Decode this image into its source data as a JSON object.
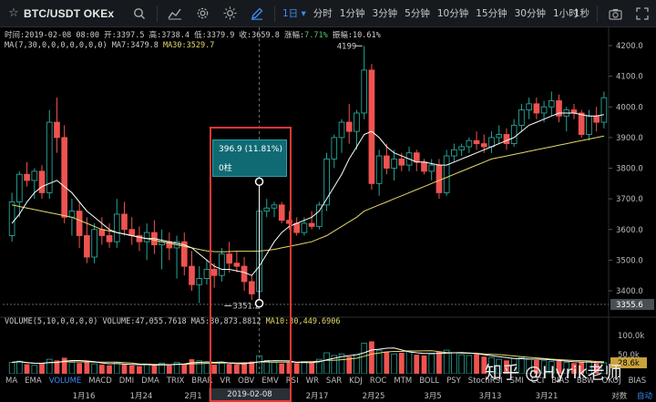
{
  "toolbar": {
    "symbol": "BTC/USDT OKEx",
    "intervals": [
      "1日 ▾",
      "分时",
      "1分钟",
      "3分钟",
      "5分钟",
      "10分钟",
      "15分钟",
      "30分钟",
      "1小时"
    ],
    "active_interval": "1日 ▾",
    "second_label": "1秒"
  },
  "info": {
    "time_label": "时间:",
    "time": "2019-02-08 08:00",
    "open_label": "开:",
    "open": "3397.5",
    "high_label": "高:",
    "high": "3738.4",
    "low_label": "低:",
    "low": "3379.9",
    "close_label": "收:",
    "close": "3659.8",
    "change_label": "涨幅:",
    "change": "7.71%",
    "amp_label": "振幅:",
    "amp": "10.61%",
    "ma_label": "MA(7,30,0,0,0,0,0,0,0)",
    "ma7_label": "MA7:",
    "ma7": "3479.8",
    "ma30_label": "MA30:",
    "ma30": "3529.7"
  },
  "volume_info": {
    "label": "VOLUME(5,10,0,0,0,0)",
    "volume_label": "VOLUME:",
    "volume": "47,055.7618",
    "ma5_label": "MA5:",
    "ma5": "30,873.8812",
    "ma10_label": "MA10:",
    "ma10": "30,449.6906"
  },
  "price_axis": [
    "4200.0",
    "4100.0",
    "4000.0",
    "3900.0",
    "3800.0",
    "3700.0",
    "3600.0",
    "3500.0",
    "3400.0"
  ],
  "price_current": "3355.6",
  "volume_axis": [
    "100.0k",
    "50.0k"
  ],
  "volume_current": "28.6k",
  "annotations": {
    "high_mark": "4199",
    "low_mark": "3351.2"
  },
  "tooltip": {
    "line1": "396.9 (11.81%)",
    "line2": "0柱"
  },
  "indicators": [
    "MA",
    "EMA",
    "VOLUME",
    "MACD",
    "DMI",
    "DMA",
    "TRIX",
    "BRAR",
    "VR",
    "OBV",
    "EMV",
    "RSI",
    "WR",
    "SAR",
    "KDJ",
    "ROC",
    "MTM",
    "BOLL",
    "PSY",
    "StochRSI",
    "SMI",
    "CCI",
    "BIAS",
    "BBW",
    "OKOJ",
    "BIAS"
  ],
  "selected_indicator": "VOLUME",
  "dates": [
    "1月16",
    "1月24",
    "2月1",
    "2月17",
    "2月25",
    "3月5",
    "3月13",
    "3月21"
  ],
  "date_highlight": "2019-02-08 08:00:00",
  "bottom_right": {
    "log": "对数",
    "auto": "自动"
  },
  "watermark": "知乎 @Hyrik老师",
  "colors": {
    "up": "#26a69a",
    "down": "#ef5350",
    "ma7": "#ffffff",
    "ma30": "#e5d96b",
    "accent": "#3d8cf5",
    "highlight_box": "#e53935"
  },
  "chart_data": {
    "type": "candlestick",
    "symbol": "BTC/USDT",
    "ylim": [
      3330,
      4260
    ],
    "volume_ylim": [
      0,
      110000
    ],
    "candles": [
      {
        "o": 3580,
        "h": 3720,
        "l": 3560,
        "c": 3690
      },
      {
        "o": 3690,
        "h": 3790,
        "l": 3640,
        "c": 3780
      },
      {
        "o": 3780,
        "h": 3820,
        "l": 3740,
        "c": 3760
      },
      {
        "o": 3760,
        "h": 3800,
        "l": 3700,
        "c": 3790
      },
      {
        "o": 3790,
        "h": 3810,
        "l": 3700,
        "c": 3720
      },
      {
        "o": 3720,
        "h": 3990,
        "l": 3700,
        "c": 3950
      },
      {
        "o": 3950,
        "h": 4030,
        "l": 3850,
        "c": 3900
      },
      {
        "o": 3900,
        "h": 3940,
        "l": 3620,
        "c": 3640
      },
      {
        "o": 3640,
        "h": 3700,
        "l": 3580,
        "c": 3660
      },
      {
        "o": 3660,
        "h": 3690,
        "l": 3540,
        "c": 3580
      },
      {
        "o": 3580,
        "h": 3640,
        "l": 3490,
        "c": 3510
      },
      {
        "o": 3510,
        "h": 3620,
        "l": 3490,
        "c": 3600
      },
      {
        "o": 3600,
        "h": 3640,
        "l": 3550,
        "c": 3580
      },
      {
        "o": 3580,
        "h": 3620,
        "l": 3540,
        "c": 3560
      },
      {
        "o": 3560,
        "h": 3700,
        "l": 3540,
        "c": 3650
      },
      {
        "o": 3650,
        "h": 3690,
        "l": 3580,
        "c": 3600
      },
      {
        "o": 3600,
        "h": 3640,
        "l": 3550,
        "c": 3580
      },
      {
        "o": 3580,
        "h": 3610,
        "l": 3530,
        "c": 3560
      },
      {
        "o": 3560,
        "h": 3620,
        "l": 3500,
        "c": 3590
      },
      {
        "o": 3590,
        "h": 3630,
        "l": 3520,
        "c": 3550
      },
      {
        "o": 3550,
        "h": 3600,
        "l": 3470,
        "c": 3560
      },
      {
        "o": 3560,
        "h": 3590,
        "l": 3500,
        "c": 3540
      },
      {
        "o": 3540,
        "h": 3580,
        "l": 3440,
        "c": 3560
      },
      {
        "o": 3560,
        "h": 3590,
        "l": 3450,
        "c": 3480
      },
      {
        "o": 3480,
        "h": 3530,
        "l": 3400,
        "c": 3420
      },
      {
        "o": 3420,
        "h": 3480,
        "l": 3360,
        "c": 3440
      },
      {
        "o": 3440,
        "h": 3500,
        "l": 3420,
        "c": 3470
      },
      {
        "o": 3470,
        "h": 3490,
        "l": 3410,
        "c": 3450
      },
      {
        "o": 3450,
        "h": 3540,
        "l": 3430,
        "c": 3520
      },
      {
        "o": 3520,
        "h": 3560,
        "l": 3460,
        "c": 3490
      },
      {
        "o": 3490,
        "h": 3530,
        "l": 3460,
        "c": 3480
      },
      {
        "o": 3480,
        "h": 3510,
        "l": 3400,
        "c": 3430
      },
      {
        "o": 3430,
        "h": 3450,
        "l": 3370,
        "c": 3390
      },
      {
        "o": 3397.5,
        "h": 3738.4,
        "l": 3379.9,
        "c": 3659.8
      },
      {
        "o": 3660,
        "h": 3700,
        "l": 3640,
        "c": 3670
      },
      {
        "o": 3670,
        "h": 3690,
        "l": 3640,
        "c": 3680
      },
      {
        "o": 3680,
        "h": 3690,
        "l": 3620,
        "c": 3630
      },
      {
        "o": 3630,
        "h": 3660,
        "l": 3600,
        "c": 3620
      },
      {
        "o": 3620,
        "h": 3640,
        "l": 3580,
        "c": 3590
      },
      {
        "o": 3590,
        "h": 3640,
        "l": 3580,
        "c": 3620
      },
      {
        "o": 3620,
        "h": 3660,
        "l": 3600,
        "c": 3610
      },
      {
        "o": 3610,
        "h": 3690,
        "l": 3600,
        "c": 3680
      },
      {
        "o": 3680,
        "h": 3850,
        "l": 3660,
        "c": 3830
      },
      {
        "o": 3830,
        "h": 3910,
        "l": 3800,
        "c": 3900
      },
      {
        "o": 3900,
        "h": 3960,
        "l": 3850,
        "c": 3950
      },
      {
        "o": 3950,
        "h": 4010,
        "l": 3880,
        "c": 3920
      },
      {
        "o": 3920,
        "h": 3990,
        "l": 3860,
        "c": 3980
      },
      {
        "o": 3980,
        "h": 4199,
        "l": 3960,
        "c": 4120
      },
      {
        "o": 4120,
        "h": 4140,
        "l": 3730,
        "c": 3750
      },
      {
        "o": 3750,
        "h": 3860,
        "l": 3710,
        "c": 3840
      },
      {
        "o": 3840,
        "h": 3880,
        "l": 3780,
        "c": 3800
      },
      {
        "o": 3800,
        "h": 3860,
        "l": 3760,
        "c": 3830
      },
      {
        "o": 3830,
        "h": 3850,
        "l": 3790,
        "c": 3810
      },
      {
        "o": 3810,
        "h": 3870,
        "l": 3790,
        "c": 3850
      },
      {
        "o": 3850,
        "h": 3860,
        "l": 3790,
        "c": 3820
      },
      {
        "o": 3820,
        "h": 3830,
        "l": 3780,
        "c": 3790
      },
      {
        "o": 3790,
        "h": 3830,
        "l": 3760,
        "c": 3810
      },
      {
        "o": 3810,
        "h": 3830,
        "l": 3700,
        "c": 3720
      },
      {
        "o": 3720,
        "h": 3860,
        "l": 3710,
        "c": 3840
      },
      {
        "o": 3840,
        "h": 3880,
        "l": 3820,
        "c": 3860
      },
      {
        "o": 3860,
        "h": 3880,
        "l": 3840,
        "c": 3870
      },
      {
        "o": 3870,
        "h": 3900,
        "l": 3850,
        "c": 3890
      },
      {
        "o": 3890,
        "h": 3920,
        "l": 3860,
        "c": 3880
      },
      {
        "o": 3880,
        "h": 3910,
        "l": 3850,
        "c": 3870
      },
      {
        "o": 3870,
        "h": 3920,
        "l": 3850,
        "c": 3900
      },
      {
        "o": 3900,
        "h": 3940,
        "l": 3880,
        "c": 3910
      },
      {
        "o": 3910,
        "h": 3930,
        "l": 3860,
        "c": 3880
      },
      {
        "o": 3880,
        "h": 3960,
        "l": 3870,
        "c": 3940
      },
      {
        "o": 3940,
        "h": 4010,
        "l": 3920,
        "c": 3990
      },
      {
        "o": 3990,
        "h": 4030,
        "l": 3960,
        "c": 4010
      },
      {
        "o": 4010,
        "h": 4030,
        "l": 3960,
        "c": 3980
      },
      {
        "o": 3980,
        "h": 4020,
        "l": 3950,
        "c": 4000
      },
      {
        "o": 4000,
        "h": 4050,
        "l": 3970,
        "c": 4020
      },
      {
        "o": 4020,
        "h": 4040,
        "l": 3950,
        "c": 3970
      },
      {
        "o": 3970,
        "h": 4000,
        "l": 3920,
        "c": 3990
      },
      {
        "o": 3990,
        "h": 4010,
        "l": 3960,
        "c": 3980
      },
      {
        "o": 3980,
        "h": 3990,
        "l": 3900,
        "c": 3910
      },
      {
        "o": 3910,
        "h": 3990,
        "l": 3890,
        "c": 3970
      },
      {
        "o": 3970,
        "h": 4000,
        "l": 3920,
        "c": 3950
      },
      {
        "o": 3950,
        "h": 4050,
        "l": 3930,
        "c": 4030
      }
    ],
    "volume": [
      30000,
      33000,
      25000,
      22000,
      28000,
      38000,
      35000,
      42000,
      30000,
      28000,
      32000,
      26000,
      24000,
      22000,
      30000,
      25000,
      22000,
      20000,
      24000,
      22000,
      28000,
      22000,
      30000,
      26000,
      38000,
      34000,
      28000,
      24000,
      30000,
      26000,
      24000,
      28000,
      32000,
      47055.76,
      35000,
      30000,
      27000,
      29000,
      28000,
      32000,
      30000,
      38000,
      55000,
      48000,
      52000,
      45000,
      50000,
      80000,
      85000,
      62000,
      58000,
      52000,
      55000,
      60000,
      50000,
      48000,
      52000,
      58000,
      62000,
      55000,
      50000,
      48000,
      52000,
      45000,
      42000,
      38000,
      35000,
      40000,
      42000,
      38000,
      36000,
      34000,
      32000,
      34000,
      30000,
      28000,
      30000,
      32000,
      28000,
      28600
    ],
    "ma7": [
      3620,
      3650,
      3690,
      3720,
      3740,
      3750,
      3760,
      3740,
      3720,
      3690,
      3660,
      3640,
      3620,
      3600,
      3590,
      3585,
      3580,
      3575,
      3570,
      3570,
      3565,
      3560,
      3555,
      3550,
      3540,
      3520,
      3500,
      3480,
      3470,
      3470,
      3465,
      3460,
      3450,
      3479.8,
      3520,
      3560,
      3590,
      3610,
      3620,
      3630,
      3640,
      3660,
      3700,
      3740,
      3780,
      3830,
      3870,
      3910,
      3920,
      3900,
      3870,
      3850,
      3840,
      3830,
      3820,
      3820,
      3815,
      3810,
      3810,
      3820,
      3830,
      3840,
      3850,
      3860,
      3870,
      3880,
      3890,
      3900,
      3920,
      3940,
      3950,
      3960,
      3970,
      3980,
      3980,
      3980,
      3975,
      3970,
      3970,
      3975
    ],
    "ma30": [
      3680,
      3675,
      3670,
      3665,
      3660,
      3655,
      3650,
      3645,
      3640,
      3630,
      3620,
      3610,
      3600,
      3595,
      3590,
      3585,
      3580,
      3575,
      3570,
      3565,
      3560,
      3555,
      3550,
      3545,
      3540,
      3535,
      3530,
      3528,
      3527,
      3528,
      3529,
      3529,
      3529,
      3529.7,
      3532,
      3535,
      3540,
      3545,
      3550,
      3555,
      3560,
      3570,
      3580,
      3595,
      3610,
      3625,
      3640,
      3660,
      3670,
      3680,
      3690,
      3700,
      3710,
      3720,
      3730,
      3740,
      3750,
      3760,
      3770,
      3780,
      3790,
      3800,
      3810,
      3820,
      3830,
      3835,
      3840,
      3845,
      3850,
      3855,
      3860,
      3865,
      3870,
      3875,
      3880,
      3885,
      3890,
      3895,
      3900,
      3905
    ]
  }
}
